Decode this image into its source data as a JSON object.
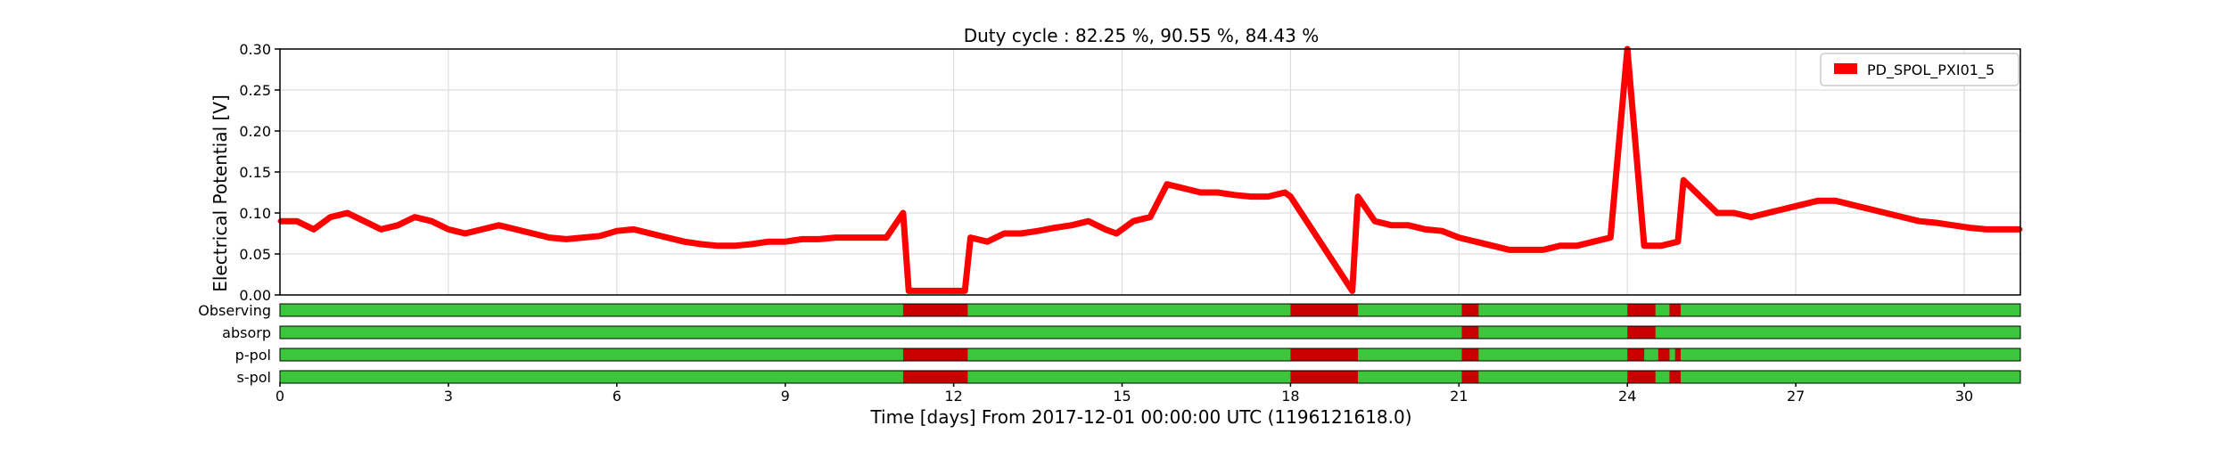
{
  "chart_data": {
    "type": "line",
    "title": "Duty cycle : 82.25 %, 90.55 %, 84.43 %",
    "xlabel": "Time [days] From 2017-12-01 00:00:00 UTC (1196121618.0)",
    "ylabel": "Electrical Potential [V]",
    "xlim": [
      0,
      31
    ],
    "ylim": [
      0,
      0.3
    ],
    "x_ticks": [
      "0",
      "3",
      "6",
      "9",
      "12",
      "15",
      "18",
      "21",
      "24",
      "27",
      "30"
    ],
    "y_ticks": [
      "0.00",
      "0.05",
      "0.10",
      "0.15",
      "0.20",
      "0.25",
      "0.30"
    ],
    "grid": true,
    "legend_position": "top-right",
    "series": [
      {
        "name": "PD_SPOL_PXI01_5",
        "color": "#ff0000",
        "x": [
          0,
          0.3,
          0.6,
          0.9,
          1.2,
          1.5,
          1.8,
          2.1,
          2.4,
          2.7,
          3.0,
          3.3,
          3.6,
          3.9,
          4.2,
          4.5,
          4.8,
          5.1,
          5.4,
          5.7,
          6.0,
          6.3,
          6.6,
          6.9,
          7.2,
          7.5,
          7.8,
          8.1,
          8.4,
          8.7,
          9.0,
          9.3,
          9.6,
          9.9,
          10.2,
          10.5,
          10.8,
          11.1,
          11.2,
          12.2,
          12.3,
          12.6,
          12.9,
          13.2,
          13.5,
          13.8,
          14.1,
          14.4,
          14.7,
          14.9,
          15.2,
          15.5,
          15.8,
          16.1,
          16.4,
          16.7,
          17.0,
          17.3,
          17.6,
          17.9,
          18.0,
          19.1,
          19.2,
          19.5,
          19.8,
          20.1,
          20.4,
          20.7,
          21.0,
          21.3,
          21.6,
          21.9,
          22.2,
          22.5,
          22.8,
          23.1,
          23.4,
          23.7,
          24.0,
          24.3,
          24.6,
          24.9,
          25.0,
          25.3,
          25.6,
          25.9,
          26.2,
          26.5,
          26.8,
          27.1,
          27.4,
          27.7,
          28.0,
          28.3,
          28.6,
          28.9,
          29.2,
          29.5,
          29.8,
          30.1,
          30.4,
          30.7,
          31.0
        ],
        "values": [
          0.09,
          0.09,
          0.08,
          0.095,
          0.1,
          0.09,
          0.08,
          0.085,
          0.095,
          0.09,
          0.08,
          0.075,
          0.08,
          0.085,
          0.08,
          0.075,
          0.07,
          0.068,
          0.07,
          0.072,
          0.078,
          0.08,
          0.075,
          0.07,
          0.065,
          0.062,
          0.06,
          0.06,
          0.062,
          0.065,
          0.065,
          0.068,
          0.068,
          0.07,
          0.07,
          0.07,
          0.07,
          0.1,
          0.005,
          0.005,
          0.07,
          0.065,
          0.075,
          0.075,
          0.078,
          0.082,
          0.085,
          0.09,
          0.08,
          0.075,
          0.09,
          0.095,
          0.135,
          0.13,
          0.125,
          0.125,
          0.122,
          0.12,
          0.12,
          0.125,
          0.12,
          0.005,
          0.12,
          0.09,
          0.085,
          0.085,
          0.08,
          0.078,
          0.07,
          0.065,
          0.06,
          0.055,
          0.055,
          0.055,
          0.06,
          0.06,
          0.065,
          0.07,
          0.3,
          0.06,
          0.06,
          0.065,
          0.14,
          0.12,
          0.1,
          0.1,
          0.095,
          0.1,
          0.105,
          0.11,
          0.115,
          0.115,
          0.11,
          0.105,
          0.1,
          0.095,
          0.09,
          0.088,
          0.085,
          0.082,
          0.08,
          0.08,
          0.08
        ]
      }
    ],
    "segments": {
      "rows": [
        "Observing",
        "absorp",
        "p-pol",
        "s-pol"
      ],
      "active_color": "#3cc63c",
      "inactive_color": "#c80000",
      "known_color": "#2e6b2e",
      "inactive_ranges": [
        [
          [
            11.1,
            12.25
          ],
          [
            18.0,
            19.2
          ],
          [
            21.05,
            21.35
          ],
          [
            24.0,
            24.5
          ],
          [
            24.75,
            24.95
          ]
        ],
        [
          [
            21.05,
            21.35
          ],
          [
            24.0,
            24.5
          ]
        ],
        [
          [
            11.1,
            12.25
          ],
          [
            18.0,
            19.2
          ],
          [
            21.05,
            21.35
          ],
          [
            24.0,
            24.3
          ],
          [
            24.55,
            24.75
          ],
          [
            24.85,
            24.95
          ]
        ],
        [
          [
            11.1,
            12.25
          ],
          [
            18.0,
            19.2
          ],
          [
            21.05,
            21.35
          ],
          [
            24.0,
            24.5
          ],
          [
            24.75,
            24.95
          ]
        ]
      ]
    }
  }
}
